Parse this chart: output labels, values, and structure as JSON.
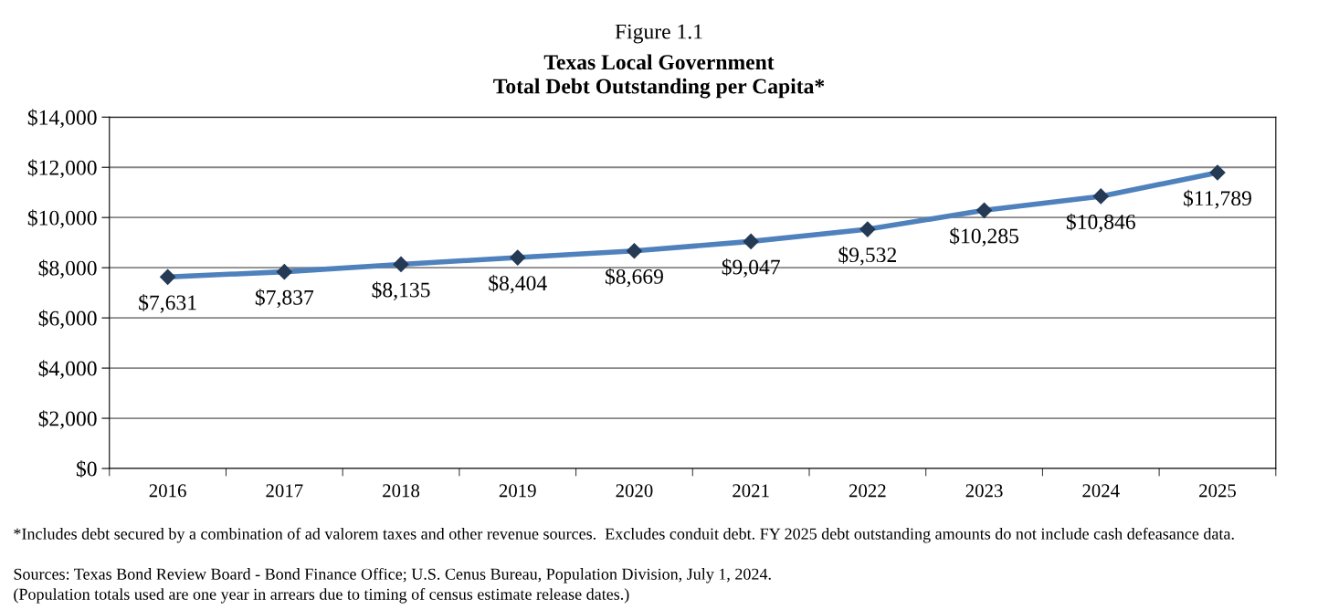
{
  "chart_data": {
    "type": "line",
    "title": "Figure 1.1",
    "subtitle": "Texas Local Government\nTotal Debt Outstanding per Capita*",
    "categories": [
      "2016",
      "2017",
      "2018",
      "2019",
      "2020",
      "2021",
      "2022",
      "2023",
      "2024",
      "2025"
    ],
    "series": [
      {
        "color": "#4f81bd",
        "values": [
          7631,
          7837,
          8135,
          8404,
          8669,
          9047,
          9532,
          10285,
          10846,
          11789
        ]
      }
    ],
    "value_labels": [
      "$7,631",
      "$7,837",
      "$8,135",
      "$8,404",
      "$8,669",
      "$9,047",
      "$9,532",
      "$10,285",
      "$10,846",
      "$11,789"
    ],
    "ylim": [
      0,
      14000
    ],
    "yticks": [
      {
        "value": 0,
        "label": "$0"
      },
      {
        "value": 2000,
        "label": "$2,000"
      },
      {
        "value": 4000,
        "label": "$4,000"
      },
      {
        "value": 6000,
        "label": "$6,000"
      },
      {
        "value": 8000,
        "label": "$8,000"
      },
      {
        "value": 10000,
        "label": "$10,000"
      },
      {
        "value": 12000,
        "label": "$12,000"
      },
      {
        "value": 14000,
        "label": "$14,000"
      }
    ],
    "grid": "y",
    "marker": "diamond",
    "line_style": "solid",
    "legend": false,
    "annotations": [
      "*Includes debt secured by a combination of ad valorem taxes and other revenue sources.  Excludes conduit debt. FY 2025 debt outstanding amounts do not include cash defeasance data.",
      "Sources: Texas Bond Review Board - Bond Finance Office; U.S. Cenus Bureau, Population Division, July 1, 2024.",
      "(Population totals used are one year in arrears due to timing of census estimate release dates.)"
    ]
  }
}
